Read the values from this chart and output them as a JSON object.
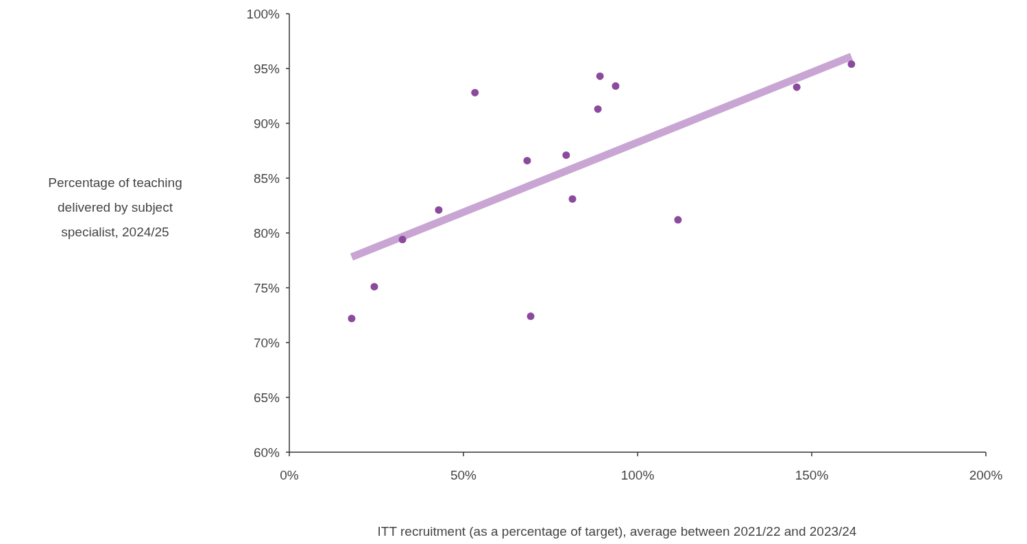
{
  "chart_data": {
    "type": "scatter",
    "xlabel": "ITT recruitment (as a percentage of target), average between 2021/22 and 2023/24",
    "ylabel": "Percentage of teaching delivered by subject specialist, 2024/25",
    "xlim": [
      0,
      200
    ],
    "ylim": [
      60,
      100
    ],
    "xticks": [
      {
        "value": 0,
        "label": "0%"
      },
      {
        "value": 50,
        "label": "50%"
      },
      {
        "value": 100,
        "label": "100%"
      },
      {
        "value": 150,
        "label": "150%"
      },
      {
        "value": 200,
        "label": "200%"
      }
    ],
    "yticks": [
      {
        "value": 60,
        "label": "60%"
      },
      {
        "value": 65,
        "label": "65%"
      },
      {
        "value": 70,
        "label": "70%"
      },
      {
        "value": 75,
        "label": "75%"
      },
      {
        "value": 80,
        "label": "80%"
      },
      {
        "value": 85,
        "label": "85%"
      },
      {
        "value": 90,
        "label": "90%"
      },
      {
        "value": 95,
        "label": "95%"
      },
      {
        "value": 100,
        "label": "100%"
      }
    ],
    "grid": false,
    "series": [
      {
        "marker": "circle",
        "color": "#8b4a9c",
        "x": [
          17.9,
          24.4,
          32.5,
          42.9,
          53.3,
          68.3,
          69.3,
          79.5,
          81.3,
          88.6,
          89.2,
          93.7,
          111.6,
          145.7,
          161.4
        ],
        "values": [
          72.2,
          75.1,
          79.4,
          82.1,
          92.8,
          86.6,
          72.4,
          87.1,
          83.1,
          91.3,
          94.3,
          93.4,
          81.2,
          93.3,
          95.4
        ]
      },
      {
        "type": "line",
        "color": "#c8a5d3",
        "x": [
          17.9,
          161.4
        ],
        "values": [
          77.8,
          96.1
        ]
      }
    ]
  }
}
